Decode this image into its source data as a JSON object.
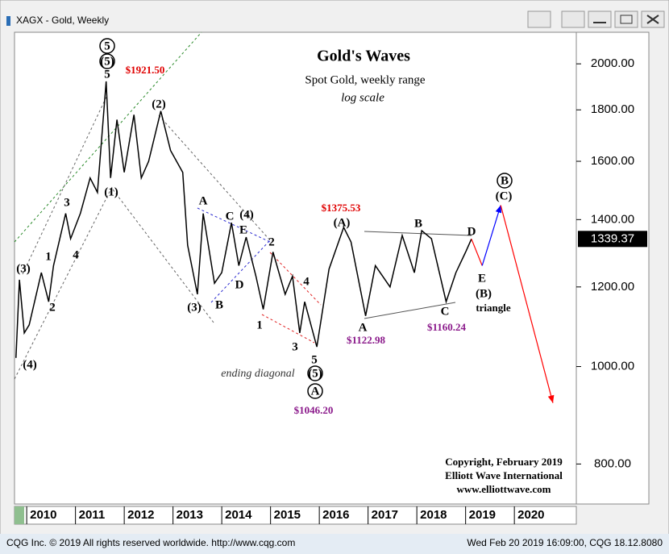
{
  "window_title": "XAGX - Gold, Weekly",
  "footer": {
    "left": "CQG Inc. © 2019 All rights reserved worldwide. http://www.cqg.com",
    "right": "Wed Feb 20 2019 16:09:00, CQG 18.12.8080"
  },
  "chart_data": {
    "type": "line",
    "title": "Gold's Waves",
    "subtitle": "Spot Gold, weekly range",
    "scale_note": "log scale",
    "log_scale": true,
    "color": "#000000",
    "x": [
      2009.78,
      2009.85,
      2009.95,
      2010.05,
      2010.3,
      2010.45,
      2010.55,
      2010.8,
      2010.9,
      2011.1,
      2011.3,
      2011.45,
      2011.63,
      2011.72,
      2011.85,
      2012.0,
      2012.2,
      2012.35,
      2012.5,
      2012.75,
      2012.95,
      2013.2,
      2013.3,
      2013.5,
      2013.62,
      2013.85,
      2014.0,
      2014.2,
      2014.35,
      2014.5,
      2014.7,
      2014.85,
      2015.05,
      2015.3,
      2015.45,
      2015.6,
      2015.7,
      2015.95,
      2016.2,
      2016.5,
      2016.65,
      2016.95,
      2017.15,
      2017.45,
      2017.7,
      2017.95,
      2018.1,
      2018.3,
      2018.6,
      2018.8,
      2019.0,
      2019.12
    ],
    "values": [
      1020,
      1220,
      1080,
      1100,
      1240,
      1160,
      1260,
      1420,
      1340,
      1420,
      1540,
      1490,
      1921.5,
      1540,
      1760,
      1560,
      1780,
      1540,
      1600,
      1795,
      1640,
      1560,
      1320,
      1180,
      1420,
      1210,
      1240,
      1390,
      1260,
      1345,
      1230,
      1140,
      1300,
      1180,
      1230,
      1080,
      1160,
      1046.2,
      1250,
      1375.53,
      1330,
      1122.98,
      1260,
      1200,
      1350,
      1240,
      1365,
      1340,
      1160.24,
      1240,
      1300,
      1339.37
    ],
    "last_value_label": "1339.37",
    "projections": [
      {
        "color": "#ff0000",
        "x": [
          2019.12,
          2019.34
        ],
        "values": [
          1339.37,
          1260
        ]
      },
      {
        "color": "#0000ff",
        "x": [
          2019.34,
          2019.72
        ],
        "values": [
          1260,
          1447
        ]
      },
      {
        "color": "#ff0000",
        "x": [
          2019.72,
          2020.79
        ],
        "values": [
          1447,
          920
        ]
      }
    ],
    "xlim": [
      2009.75,
      2021.27
    ],
    "ylim": [
      730,
      2150
    ],
    "xticks": [
      2010,
      2011,
      2012,
      2013,
      2014,
      2015,
      2016,
      2017,
      2018,
      2019,
      2020
    ],
    "yticks": [
      {
        "value": 800,
        "label": "800.00"
      },
      {
        "value": 1000,
        "label": "1000.00"
      },
      {
        "value": 1200,
        "label": "1200.00"
      },
      {
        "value": 1400,
        "label": "1400.00"
      },
      {
        "value": 1600,
        "label": "1600.00"
      },
      {
        "value": 1800,
        "label": "1800.00"
      },
      {
        "value": 2000,
        "label": "2000.00"
      }
    ],
    "annotations": [
      "5",
      "(5)",
      "5",
      "$1921.50",
      "(2)",
      "(1)",
      "3",
      "1",
      "4",
      "2",
      "(3)",
      "(4)",
      "A",
      "C",
      "(4)",
      "E",
      "2",
      "D",
      "B",
      "(3)",
      "4",
      "1",
      "3",
      "5",
      "ending diagonal",
      "(5)",
      "A",
      "$1046.20",
      "$1375.53",
      "(A)",
      "A",
      "$1122.98",
      "B",
      "C",
      "$1160.24",
      "D",
      "E",
      "(B)",
      "triangle",
      "B",
      "(C)"
    ],
    "copyright": [
      "Copyright, February 2019",
      "Elliott Wave International",
      "www.elliottwave.com"
    ]
  }
}
